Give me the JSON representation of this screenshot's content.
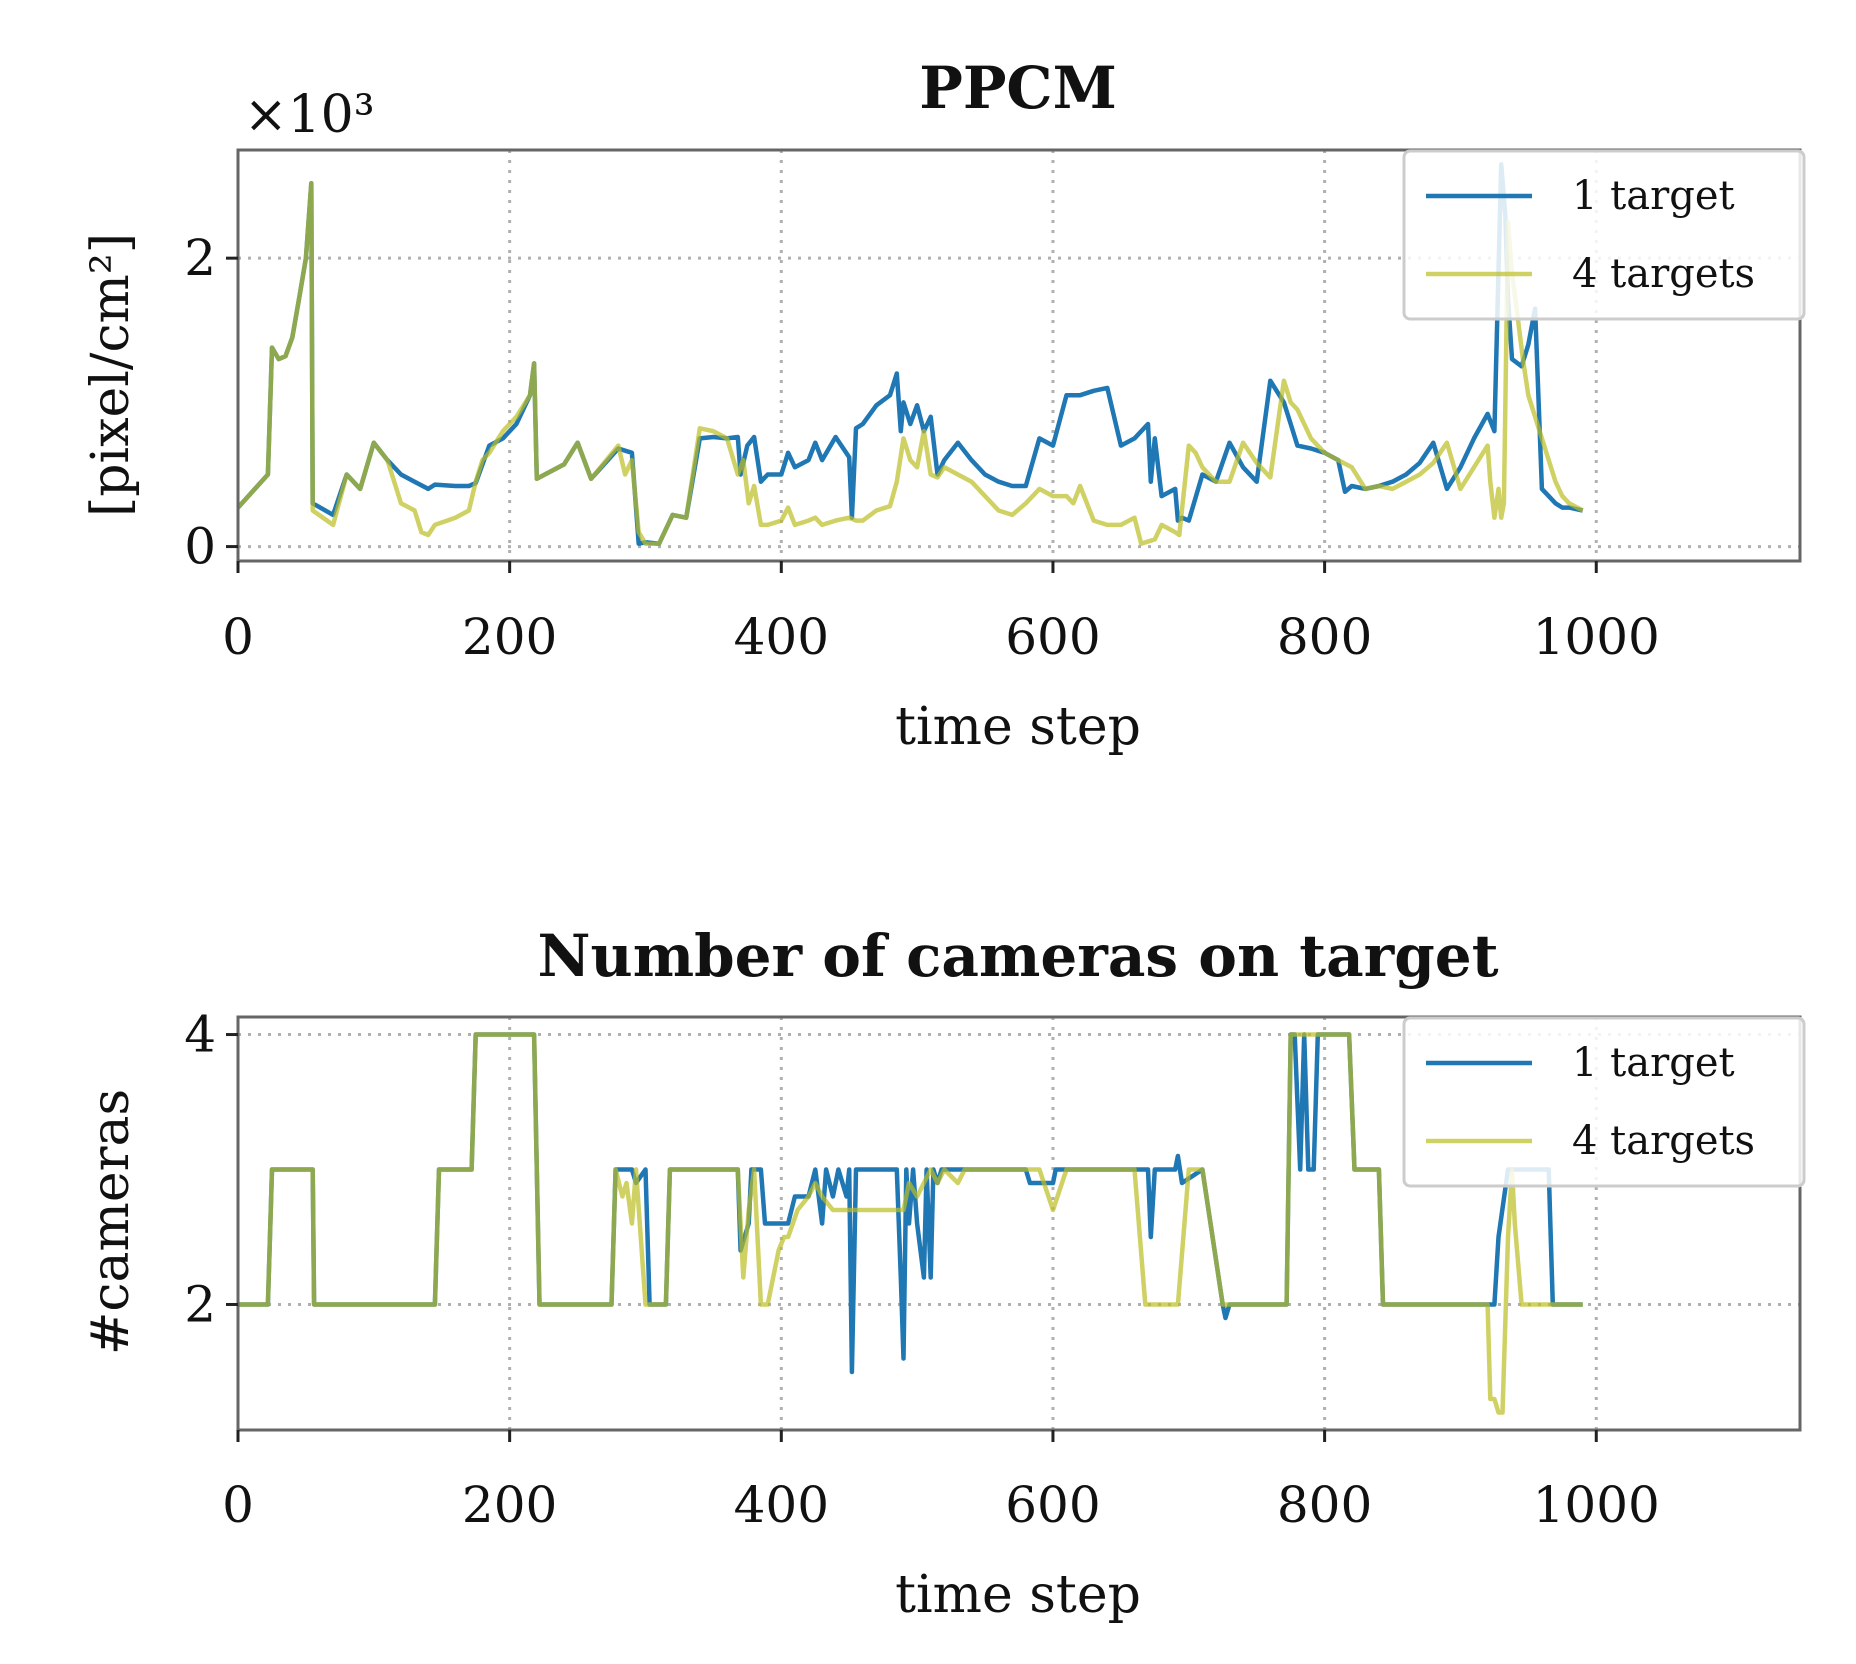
{
  "colors": {
    "series1": "#1f77b4",
    "series2": "#bcbd22",
    "overlap": "#8aa84a"
  },
  "chart_data": [
    {
      "type": "line",
      "title": "PPCM",
      "xlabel": "time step",
      "ylabel": "[pixel/cm²]",
      "y_multiplier": "×10³",
      "xlim": [
        0,
        1150
      ],
      "ylim": [
        -0.1,
        2.75
      ],
      "xticks": [
        0,
        200,
        400,
        600,
        800,
        1000
      ],
      "xtick_labels": [
        "0",
        "200",
        "400",
        "600",
        "800",
        "1000"
      ],
      "yticks": [
        0,
        2
      ],
      "ytick_labels": [
        "0",
        "2"
      ],
      "grid": true,
      "legend_position": "top-right",
      "series": [
        {
          "name": "1 target",
          "x": [
            0,
            22,
            25,
            30,
            35,
            40,
            45,
            50,
            54,
            55,
            70,
            80,
            90,
            100,
            110,
            120,
            130,
            140,
            145,
            160,
            170,
            175,
            185,
            195,
            205,
            215,
            218,
            220,
            240,
            250,
            260,
            280,
            290,
            295,
            300,
            310,
            320,
            330,
            340,
            350,
            360,
            368,
            370,
            375,
            380,
            385,
            390,
            400,
            405,
            410,
            420,
            425,
            430,
            440,
            450,
            452,
            455,
            460,
            470,
            480,
            485,
            488,
            490,
            495,
            500,
            505,
            510,
            515,
            520,
            530,
            540,
            550,
            560,
            570,
            580,
            590,
            600,
            610,
            620,
            630,
            640,
            650,
            660,
            670,
            672,
            675,
            680,
            690,
            692,
            695,
            700,
            710,
            720,
            730,
            740,
            750,
            760,
            770,
            775,
            780,
            790,
            800,
            810,
            815,
            820,
            830,
            840,
            850,
            860,
            870,
            880,
            890,
            900,
            910,
            920,
            925,
            930,
            933,
            935,
            938,
            945,
            950,
            955,
            960,
            965,
            970,
            975,
            980,
            990
          ],
          "values": [
            0.27,
            0.5,
            1.38,
            1.3,
            1.32,
            1.45,
            1.72,
            2.0,
            2.52,
            0.3,
            0.22,
            0.5,
            0.4,
            0.72,
            0.6,
            0.5,
            0.45,
            0.4,
            0.43,
            0.42,
            0.42,
            0.44,
            0.7,
            0.75,
            0.85,
            1.05,
            1.27,
            0.47,
            0.57,
            0.72,
            0.47,
            0.68,
            0.65,
            0.02,
            0.03,
            0.02,
            0.22,
            0.2,
            0.75,
            0.76,
            0.75,
            0.76,
            0.5,
            0.7,
            0.76,
            0.45,
            0.5,
            0.5,
            0.65,
            0.55,
            0.6,
            0.72,
            0.6,
            0.76,
            0.62,
            0.2,
            0.82,
            0.85,
            0.98,
            1.05,
            1.2,
            0.8,
            1.0,
            0.85,
            0.98,
            0.8,
            0.9,
            0.5,
            0.6,
            0.72,
            0.6,
            0.5,
            0.45,
            0.42,
            0.42,
            0.75,
            0.7,
            1.05,
            1.05,
            1.08,
            1.1,
            0.7,
            0.75,
            0.85,
            0.45,
            0.75,
            0.35,
            0.4,
            0.18,
            0.2,
            0.18,
            0.5,
            0.45,
            0.72,
            0.55,
            0.45,
            1.15,
            1.0,
            0.85,
            0.7,
            0.68,
            0.65,
            0.6,
            0.38,
            0.42,
            0.4,
            0.42,
            0.45,
            0.5,
            0.58,
            0.72,
            0.4,
            0.55,
            0.75,
            0.92,
            0.8,
            2.65,
            2.3,
            1.72,
            1.3,
            1.25,
            1.4,
            1.65,
            0.4,
            0.35,
            0.3,
            0.27,
            0.27,
            0.25
          ]
        },
        {
          "name": "4 targets",
          "x": [
            0,
            22,
            25,
            30,
            35,
            40,
            45,
            50,
            54,
            55,
            70,
            80,
            90,
            100,
            110,
            120,
            130,
            135,
            140,
            145,
            160,
            170,
            175,
            180,
            185,
            195,
            205,
            215,
            218,
            220,
            240,
            250,
            260,
            280,
            285,
            290,
            295,
            300,
            310,
            320,
            330,
            340,
            350,
            360,
            368,
            372,
            376,
            380,
            385,
            390,
            400,
            405,
            410,
            420,
            425,
            430,
            440,
            450,
            455,
            460,
            470,
            480,
            485,
            490,
            495,
            500,
            505,
            510,
            515,
            520,
            540,
            560,
            570,
            580,
            590,
            600,
            610,
            615,
            620,
            630,
            640,
            650,
            660,
            665,
            675,
            680,
            690,
            693,
            700,
            705,
            710,
            720,
            730,
            740,
            750,
            760,
            770,
            775,
            780,
            790,
            800,
            810,
            820,
            830,
            840,
            850,
            860,
            870,
            880,
            890,
            900,
            910,
            920,
            922,
            925,
            928,
            930,
            932,
            935,
            938,
            942,
            946,
            950,
            955,
            960,
            965,
            970,
            975,
            980,
            990
          ],
          "values": [
            0.27,
            0.5,
            1.38,
            1.3,
            1.32,
            1.45,
            1.72,
            2.0,
            2.52,
            0.25,
            0.15,
            0.5,
            0.4,
            0.72,
            0.6,
            0.3,
            0.25,
            0.1,
            0.08,
            0.15,
            0.2,
            0.25,
            0.45,
            0.6,
            0.65,
            0.8,
            0.9,
            1.05,
            1.27,
            0.47,
            0.57,
            0.72,
            0.47,
            0.7,
            0.5,
            0.6,
            0.1,
            0.02,
            0.02,
            0.22,
            0.2,
            0.82,
            0.8,
            0.75,
            0.5,
            0.6,
            0.3,
            0.42,
            0.15,
            0.15,
            0.18,
            0.27,
            0.15,
            0.18,
            0.2,
            0.15,
            0.18,
            0.2,
            0.18,
            0.18,
            0.25,
            0.28,
            0.45,
            0.75,
            0.6,
            0.55,
            0.8,
            0.5,
            0.48,
            0.55,
            0.45,
            0.25,
            0.22,
            0.3,
            0.4,
            0.35,
            0.35,
            0.3,
            0.42,
            0.18,
            0.15,
            0.15,
            0.2,
            0.02,
            0.05,
            0.15,
            0.1,
            0.08,
            0.7,
            0.65,
            0.55,
            0.45,
            0.45,
            0.72,
            0.58,
            0.48,
            1.15,
            1.0,
            0.95,
            0.75,
            0.65,
            0.6,
            0.55,
            0.4,
            0.42,
            0.4,
            0.45,
            0.5,
            0.58,
            0.72,
            0.4,
            0.55,
            0.7,
            0.45,
            0.2,
            0.4,
            0.2,
            0.3,
            2.25,
            1.9,
            1.6,
            1.3,
            1.05,
            0.9,
            0.75,
            0.6,
            0.45,
            0.35,
            0.3,
            0.25
          ]
        }
      ]
    },
    {
      "type": "line",
      "title": "Number of cameras on target",
      "xlabel": "time step",
      "ylabel": "#cameras",
      "xlim": [
        0,
        1150
      ],
      "ylim": [
        1.07,
        4.13
      ],
      "xticks": [
        0,
        200,
        400,
        600,
        800,
        1000
      ],
      "xtick_labels": [
        "0",
        "200",
        "400",
        "600",
        "800",
        "1000"
      ],
      "yticks": [
        2,
        4
      ],
      "ytick_labels": [
        "2",
        "4"
      ],
      "grid": true,
      "legend_position": "top-right",
      "series": [
        {
          "name": "1 target",
          "x": [
            0,
            22,
            25,
            55,
            56,
            145,
            148,
            172,
            175,
            218,
            222,
            275,
            278,
            290,
            293,
            300,
            303,
            315,
            318,
            368,
            370,
            376,
            378,
            385,
            388,
            405,
            410,
            420,
            425,
            430,
            433,
            438,
            442,
            448,
            450,
            452,
            455,
            470,
            485,
            488,
            490,
            492,
            494,
            497,
            500,
            505,
            507,
            510,
            512,
            515,
            518,
            520,
            580,
            583,
            600,
            602,
            670,
            672,
            675,
            690,
            692,
            695,
            710,
            725,
            727,
            730,
            733,
            772,
            775,
            778,
            782,
            785,
            788,
            792,
            795,
            800,
            818,
            822,
            840,
            843,
            925,
            928,
            935,
            938,
            965,
            968,
            990
          ],
          "values": [
            2,
            2,
            3,
            3,
            2,
            2,
            3,
            3,
            4,
            4,
            2,
            2,
            3,
            3,
            2.9,
            3,
            2,
            2,
            3,
            3,
            2.4,
            2.6,
            3,
            3,
            2.6,
            2.6,
            2.8,
            2.8,
            3,
            2.6,
            3,
            2.8,
            3,
            2.8,
            3,
            1.5,
            3,
            3,
            3,
            2.2,
            1.6,
            3,
            2.6,
            3,
            2.6,
            2.2,
            3,
            2.2,
            3,
            2.9,
            3,
            3,
            3,
            2.9,
            2.9,
            3,
            3,
            2.5,
            3,
            3,
            3.1,
            2.9,
            3,
            2,
            1.9,
            2,
            2,
            2,
            4,
            4,
            3,
            4,
            3,
            3,
            4,
            4,
            4,
            3,
            3,
            2,
            2,
            2.5,
            3,
            3,
            3,
            2,
            2
          ]
        },
        {
          "name": "4 targets",
          "x": [
            0,
            22,
            25,
            55,
            56,
            145,
            148,
            172,
            175,
            218,
            222,
            275,
            278,
            283,
            286,
            290,
            293,
            300,
            303,
            315,
            318,
            368,
            372,
            376,
            380,
            385,
            390,
            398,
            402,
            405,
            412,
            420,
            425,
            430,
            438,
            445,
            480,
            490,
            494,
            500,
            505,
            510,
            515,
            520,
            530,
            535,
            590,
            600,
            610,
            620,
            660,
            668,
            680,
            692,
            700,
            710,
            725,
            730,
            772,
            775,
            780,
            790,
            800,
            818,
            822,
            840,
            843,
            920,
            922,
            925,
            928,
            931,
            935,
            938,
            940,
            945,
            950,
            990
          ],
          "values": [
            2,
            2,
            3,
            3,
            2,
            2,
            3,
            3,
            4,
            4,
            2,
            2,
            3,
            2.8,
            2.9,
            2.6,
            3,
            2,
            2,
            2,
            3,
            3,
            2.2,
            2.7,
            3,
            2,
            2,
            2.4,
            2.5,
            2.5,
            2.7,
            2.8,
            2.9,
            2.8,
            2.7,
            2.7,
            2.7,
            2.7,
            2.9,
            2.8,
            2.9,
            3,
            2.9,
            3,
            2.9,
            3,
            3,
            2.7,
            3,
            3,
            3,
            2,
            2,
            2,
            3,
            3,
            2,
            2,
            2,
            4,
            4,
            4,
            4,
            4,
            3,
            3,
            2,
            2,
            1.3,
            1.3,
            1.2,
            1.2,
            2.5,
            3,
            2.6,
            2,
            2,
            2
          ]
        }
      ]
    }
  ]
}
